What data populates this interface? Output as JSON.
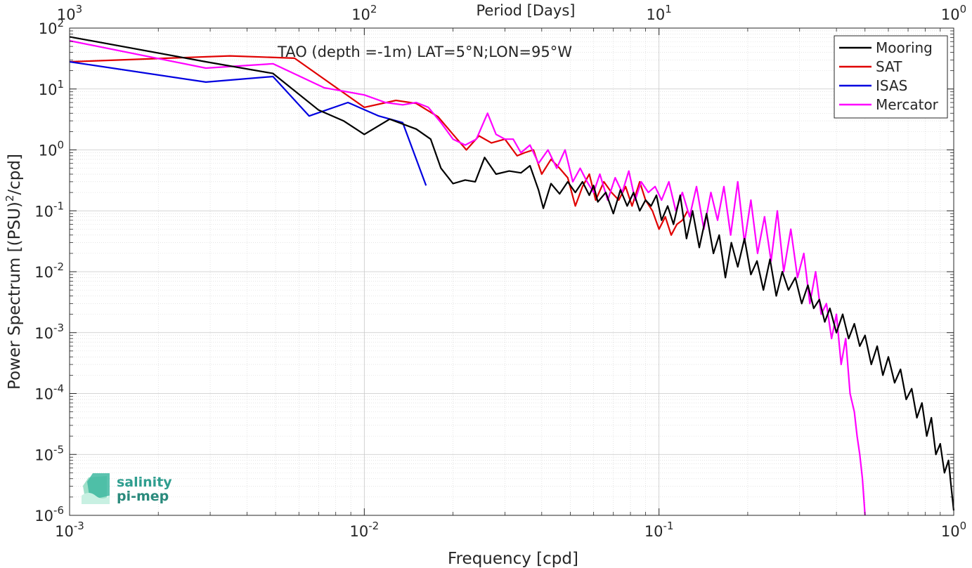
{
  "chart_data": {
    "type": "line",
    "title": "TAO (depth =-1m) LAT=5°N;LON=95°W",
    "xlabel": "Frequency [cpd]",
    "ylabel_main": "Power Spectrum [(PSU)",
    "ylabel_sup": "2",
    "ylabel_tail": "/cpd]",
    "x2label": "Period [Days]",
    "xscale": "log",
    "yscale": "log",
    "xlim": [
      0.001,
      1
    ],
    "ylim": [
      1e-06,
      100
    ],
    "grid": true,
    "minor_grid": true,
    "legend_position": "top-right",
    "x_ticks": [
      {
        "v": 0.001,
        "b": "10",
        "e": "-3"
      },
      {
        "v": 0.01,
        "b": "10",
        "e": "-2"
      },
      {
        "v": 0.1,
        "b": "10",
        "e": "-1"
      },
      {
        "v": 1,
        "b": "10",
        "e": "0"
      }
    ],
    "x2_ticks": [
      {
        "v": 0.001,
        "b": "10",
        "e": "3"
      },
      {
        "v": 0.01,
        "b": "10",
        "e": "2"
      },
      {
        "v": 0.1,
        "b": "10",
        "e": "1"
      },
      {
        "v": 1,
        "b": "10",
        "e": "0"
      }
    ],
    "y_ticks": [
      {
        "v": 100,
        "b": "10",
        "e": "2"
      },
      {
        "v": 10,
        "b": "10",
        "e": "1"
      },
      {
        "v": 1,
        "b": "10",
        "e": "0"
      },
      {
        "v": 0.1,
        "b": "10",
        "e": "-1"
      },
      {
        "v": 0.01,
        "b": "10",
        "e": "-2"
      },
      {
        "v": 0.001,
        "b": "10",
        "e": "-3"
      },
      {
        "v": 0.0001,
        "b": "10",
        "e": "-4"
      },
      {
        "v": 1e-05,
        "b": "10",
        "e": "-5"
      },
      {
        "v": 1e-06,
        "b": "10",
        "e": "-6"
      }
    ],
    "series": [
      {
        "name": "Mooring",
        "color": "#000000",
        "x": [
          0.001,
          0.0029,
          0.0049,
          0.007,
          0.0085,
          0.01,
          0.0122,
          0.015,
          0.0168,
          0.0182,
          0.02,
          0.022,
          0.0238,
          0.0256,
          0.028,
          0.031,
          0.034,
          0.0365,
          0.039,
          0.0405,
          0.043,
          0.046,
          0.049,
          0.052,
          0.055,
          0.058,
          0.06,
          0.062,
          0.066,
          0.07,
          0.074,
          0.078,
          0.082,
          0.086,
          0.09,
          0.094,
          0.098,
          0.102,
          0.107,
          0.112,
          0.118,
          0.124,
          0.13,
          0.137,
          0.145,
          0.153,
          0.16,
          0.168,
          0.176,
          0.185,
          0.195,
          0.205,
          0.215,
          0.226,
          0.238,
          0.25,
          0.262,
          0.275,
          0.29,
          0.305,
          0.32,
          0.335,
          0.35,
          0.365,
          0.38,
          0.4,
          0.42,
          0.44,
          0.46,
          0.48,
          0.5,
          0.525,
          0.55,
          0.575,
          0.6,
          0.63,
          0.66,
          0.69,
          0.72,
          0.75,
          0.78,
          0.81,
          0.84,
          0.87,
          0.9,
          0.93,
          0.96,
          0.98,
          1.0
        ],
        "y": [
          72,
          28,
          18,
          4.5,
          3.0,
          1.8,
          3.2,
          2.2,
          1.5,
          0.5,
          0.28,
          0.32,
          0.3,
          0.75,
          0.4,
          0.45,
          0.42,
          0.55,
          0.22,
          0.11,
          0.28,
          0.19,
          0.3,
          0.2,
          0.3,
          0.18,
          0.26,
          0.14,
          0.2,
          0.09,
          0.22,
          0.12,
          0.2,
          0.1,
          0.15,
          0.12,
          0.18,
          0.07,
          0.12,
          0.06,
          0.18,
          0.035,
          0.1,
          0.025,
          0.09,
          0.02,
          0.04,
          0.008,
          0.03,
          0.012,
          0.035,
          0.009,
          0.015,
          0.005,
          0.016,
          0.004,
          0.01,
          0.005,
          0.008,
          0.003,
          0.006,
          0.0025,
          0.0035,
          0.0015,
          0.0025,
          0.001,
          0.002,
          0.0008,
          0.0014,
          0.0006,
          0.0009,
          0.0003,
          0.0006,
          0.0002,
          0.0004,
          0.00015,
          0.00025,
          8e-05,
          0.00012,
          4e-05,
          7e-05,
          2e-05,
          4e-05,
          1e-05,
          1.5e-05,
          5e-06,
          8e-06,
          3e-06,
          1.2e-06
        ]
      },
      {
        "name": "SAT",
        "color": "#e00000",
        "x": [
          0.001,
          0.0035,
          0.0058,
          0.01,
          0.0128,
          0.015,
          0.0178,
          0.02,
          0.0222,
          0.0245,
          0.027,
          0.03,
          0.033,
          0.035,
          0.0375,
          0.04,
          0.043,
          0.046,
          0.049,
          0.052,
          0.055,
          0.058,
          0.061,
          0.065,
          0.069,
          0.073,
          0.077,
          0.081,
          0.086,
          0.09,
          0.095,
          0.1,
          0.105,
          0.11,
          0.115,
          0.12,
          0.125
        ],
        "y": [
          28,
          35,
          32,
          5.0,
          6.5,
          5.8,
          3.5,
          1.8,
          1.0,
          1.7,
          1.3,
          1.5,
          0.8,
          0.9,
          1.0,
          0.4,
          0.7,
          0.5,
          0.35,
          0.12,
          0.25,
          0.4,
          0.15,
          0.3,
          0.2,
          0.15,
          0.25,
          0.12,
          0.3,
          0.15,
          0.1,
          0.05,
          0.08,
          0.04,
          0.06,
          0.07,
          0.1
        ]
      },
      {
        "name": "ISAS",
        "color": "#0000e0",
        "x": [
          0.001,
          0.0029,
          0.0049,
          0.0065,
          0.0088,
          0.0112,
          0.0135,
          0.0162
        ],
        "y": [
          28,
          13,
          16,
          3.6,
          6.0,
          3.6,
          2.8,
          0.26
        ]
      },
      {
        "name": "Mercator",
        "color": "#ff00ff",
        "x": [
          0.001,
          0.0029,
          0.0049,
          0.0073,
          0.01,
          0.0118,
          0.0135,
          0.015,
          0.0165,
          0.0182,
          0.02,
          0.022,
          0.024,
          0.0262,
          0.028,
          0.03,
          0.032,
          0.034,
          0.0365,
          0.039,
          0.042,
          0.045,
          0.048,
          0.051,
          0.054,
          0.057,
          0.06,
          0.063,
          0.067,
          0.071,
          0.075,
          0.079,
          0.083,
          0.087,
          0.092,
          0.097,
          0.102,
          0.108,
          0.114,
          0.12,
          0.127,
          0.134,
          0.142,
          0.15,
          0.158,
          0.166,
          0.175,
          0.185,
          0.195,
          0.205,
          0.216,
          0.228,
          0.24,
          0.252,
          0.265,
          0.28,
          0.295,
          0.31,
          0.325,
          0.34,
          0.355,
          0.37,
          0.385,
          0.4,
          0.415,
          0.43,
          0.445,
          0.46,
          0.47,
          0.48,
          0.49,
          0.5
        ],
        "y": [
          62,
          22,
          26,
          10.5,
          8.0,
          6.0,
          5.5,
          6.0,
          5.0,
          2.8,
          1.5,
          1.2,
          1.5,
          4.0,
          1.8,
          1.5,
          1.5,
          0.9,
          1.2,
          0.6,
          1.0,
          0.5,
          1.0,
          0.3,
          0.5,
          0.3,
          0.2,
          0.4,
          0.15,
          0.35,
          0.2,
          0.45,
          0.15,
          0.3,
          0.2,
          0.25,
          0.15,
          0.3,
          0.1,
          0.2,
          0.08,
          0.25,
          0.05,
          0.2,
          0.07,
          0.25,
          0.04,
          0.3,
          0.03,
          0.15,
          0.02,
          0.08,
          0.015,
          0.1,
          0.01,
          0.05,
          0.008,
          0.02,
          0.003,
          0.01,
          0.002,
          0.003,
          0.0008,
          0.002,
          0.0003,
          0.0008,
          0.0001,
          5e-05,
          2e-05,
          1e-05,
          4e-06,
          1e-06
        ]
      }
    ],
    "logo": {
      "line1": "salinity",
      "line2": "pi-mep",
      "color": "#2f9e8f"
    }
  }
}
